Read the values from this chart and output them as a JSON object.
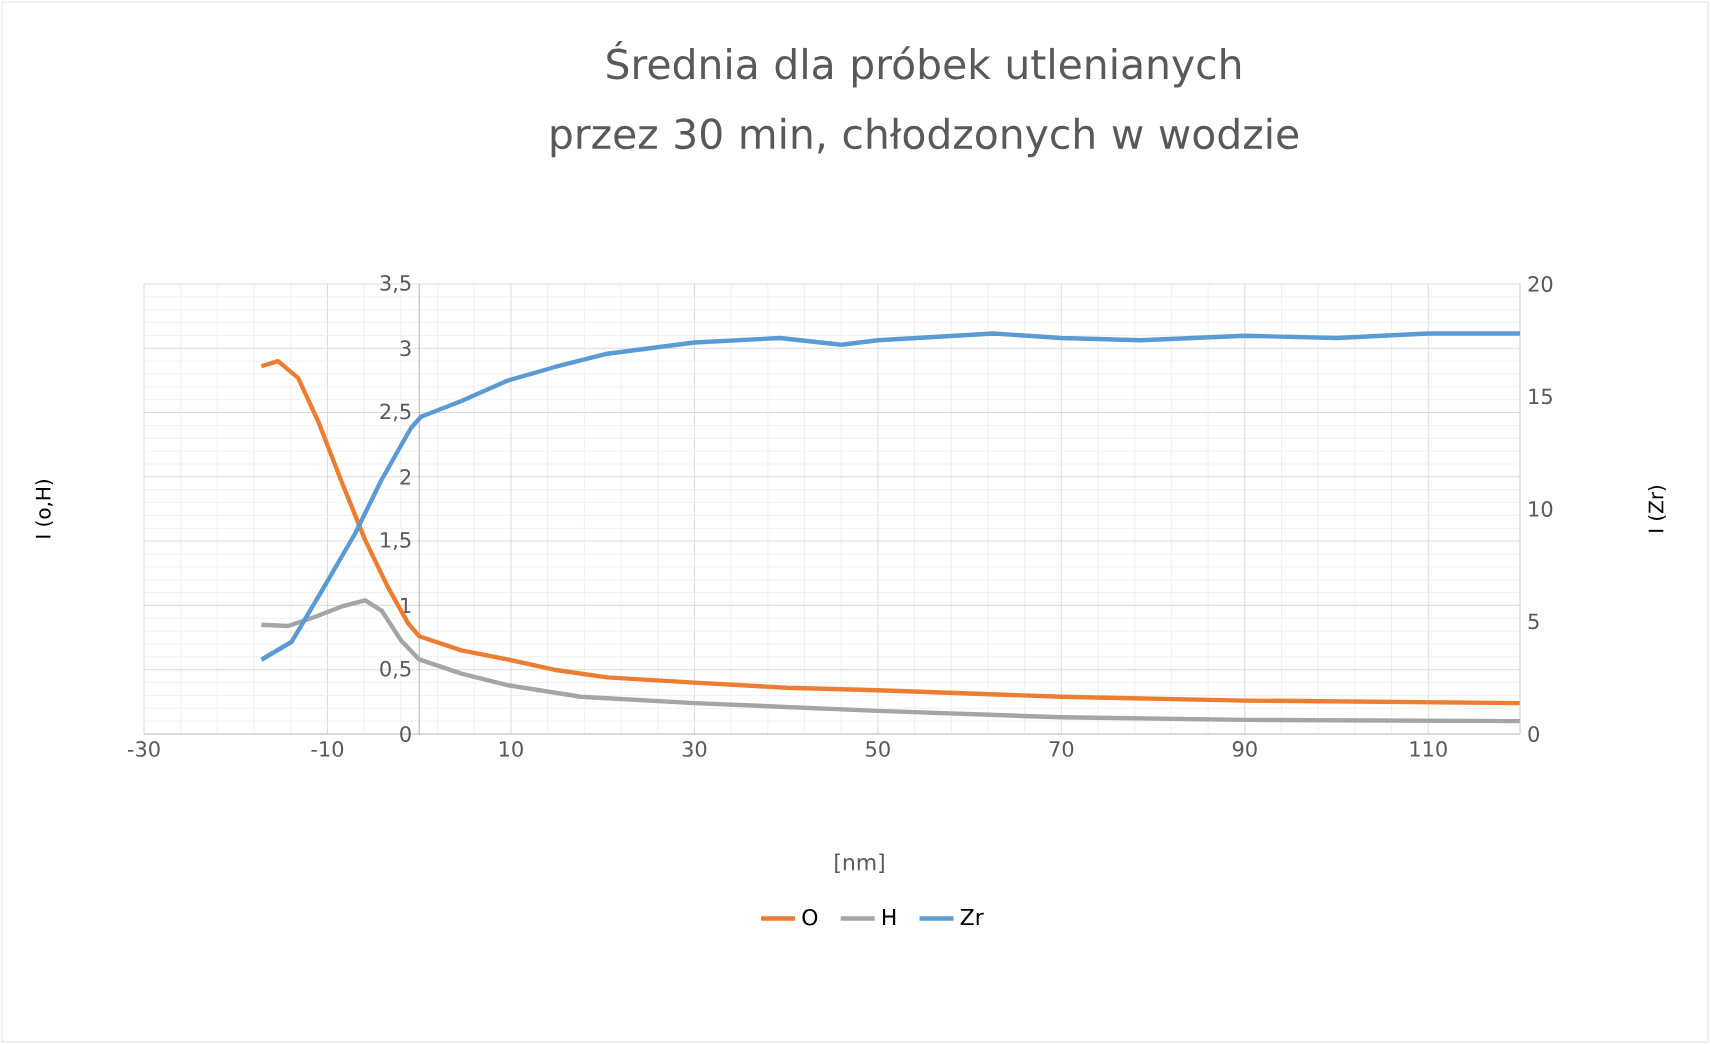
{
  "chart_data": {
    "type": "line",
    "title": "Średnia dla próbek utlenianych przez 30 min, chłodzonych w wodzie",
    "xlabel": "[nm]",
    "ylabel": "I (o,H)",
    "y2label": "I (Zr)",
    "xlim": [
      -30,
      120
    ],
    "xticks": [
      -30,
      -10,
      10,
      30,
      50,
      70,
      90,
      110
    ],
    "ylim": [
      0,
      3.5
    ],
    "yticks": [
      0,
      {
        "value": 0.5,
        "label": "0,5"
      },
      1,
      {
        "value": 1.5,
        "label": "1,5"
      },
      2,
      {
        "value": 2.5,
        "label": "2,5"
      },
      3,
      {
        "value": 3.5,
        "label": "3,5"
      }
    ],
    "y2lim": [
      0,
      20
    ],
    "y2ticks": [
      0,
      5,
      10,
      15,
      20
    ],
    "grid": true,
    "legend": "bottom",
    "marker": "none",
    "line_style": "solid",
    "series": [
      {
        "name": "O",
        "color": "#ed7d31",
        "x": [
          -17.2,
          -15.4,
          -13.2,
          -11,
          -8.5,
          -5.9,
          -3.4,
          -1.2,
          0,
          4.6,
          9.6,
          14.7,
          20.5,
          30,
          40,
          50,
          70,
          90,
          120
        ],
        "values": [
          2.86,
          2.9,
          2.77,
          2.43,
          1.97,
          1.51,
          1.14,
          0.86,
          0.76,
          0.65,
          0.58,
          0.5,
          0.44,
          0.4,
          0.36,
          0.34,
          0.29,
          0.26,
          0.24
        ]
      },
      {
        "name": "H",
        "color": "#a5a5a5",
        "x": [
          -17.2,
          -14.3,
          -11.4,
          -8.5,
          -5.9,
          -4.1,
          -2,
          0,
          4.6,
          9.6,
          17.6,
          30,
          50,
          70,
          90,
          120
        ],
        "values": [
          0.85,
          0.84,
          0.91,
          0.99,
          1.04,
          0.96,
          0.73,
          0.58,
          0.47,
          0.38,
          0.29,
          0.24,
          0.18,
          0.13,
          0.11,
          0.1
        ]
      },
      {
        "name": "Zr",
        "color": "#5b9bd5",
        "axis": "y2",
        "x": [
          -17.2,
          -13.9,
          -10.7,
          -7,
          -4.1,
          -0.9,
          0.2,
          4.6,
          9.6,
          14.7,
          20.5,
          30,
          39.3,
          46,
          50,
          62.6,
          70,
          78.7,
          90,
          100,
          110,
          120
        ],
        "values": [
          3.3,
          4.1,
          6.3,
          8.9,
          11.3,
          13.6,
          14.1,
          14.8,
          15.7,
          16.3,
          16.9,
          17.4,
          17.6,
          17.3,
          17.5,
          17.8,
          17.6,
          17.5,
          17.7,
          17.6,
          17.8,
          17.8
        ]
      }
    ]
  }
}
